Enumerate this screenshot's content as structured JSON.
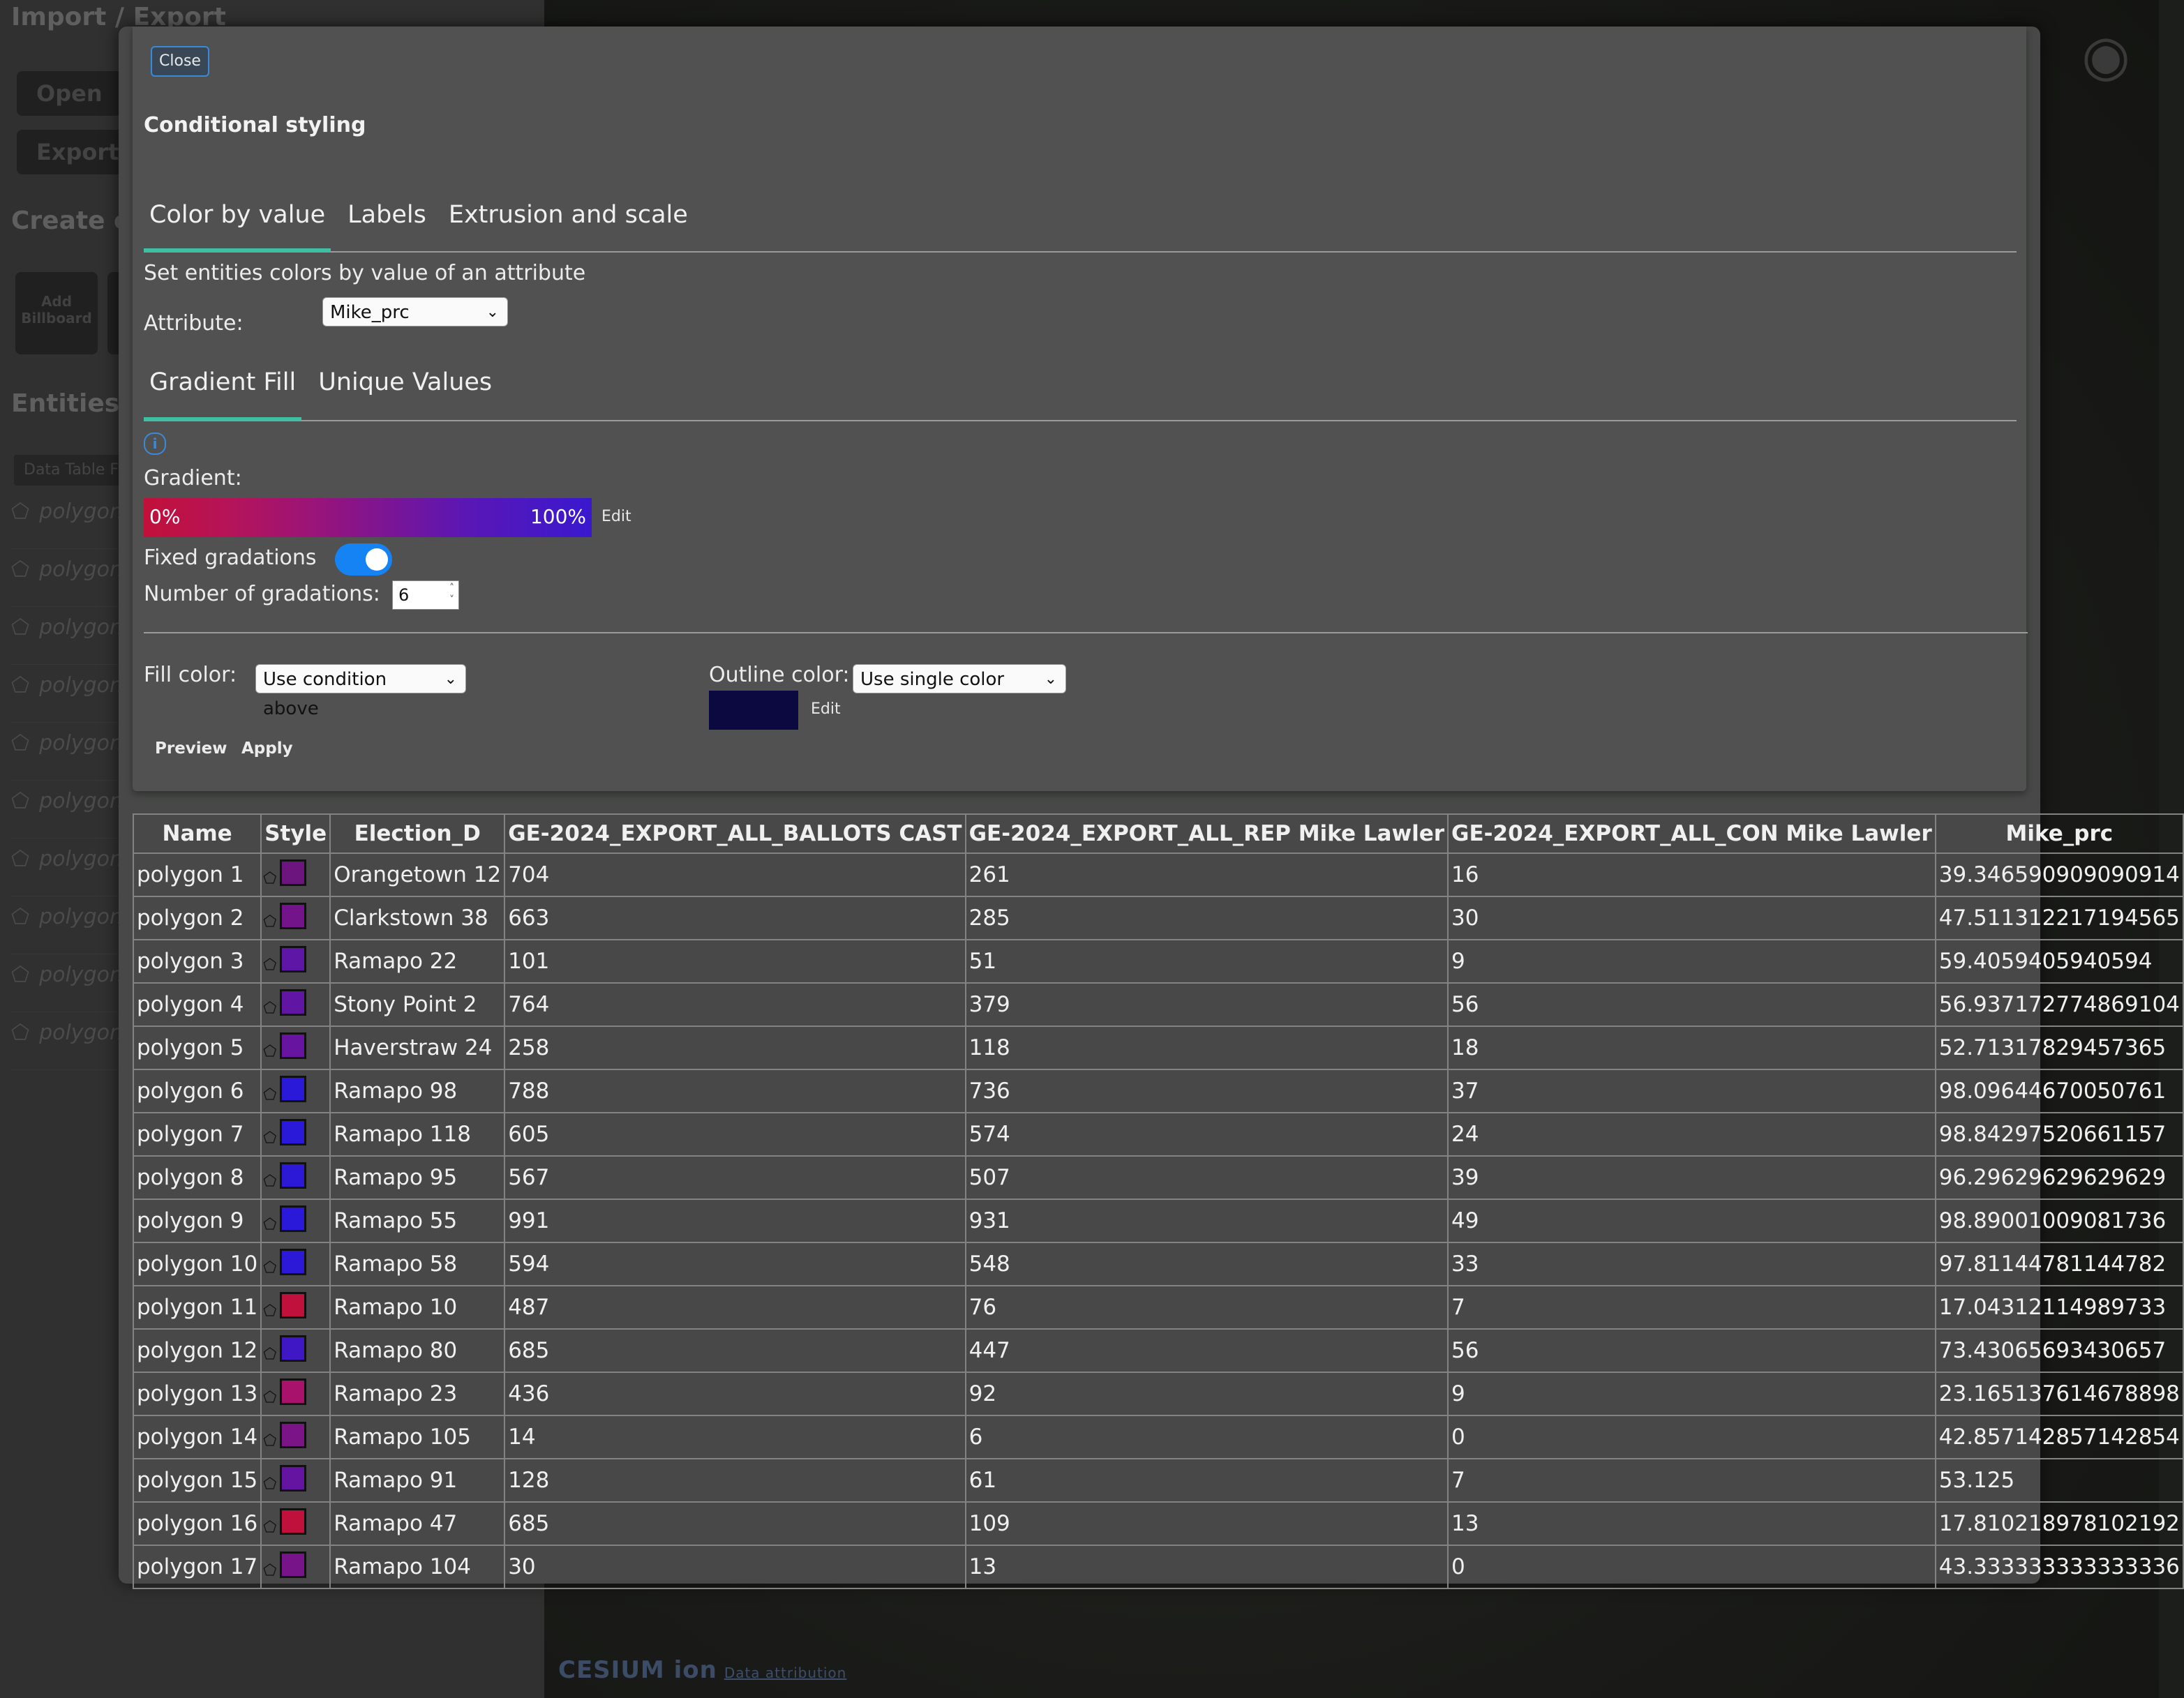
{
  "sidebar": {
    "heading_import": "Import / Export",
    "open_label": "Open",
    "export_label": "Export",
    "heading_create": "Create e",
    "add_billboard_label": "Add Billboard",
    "heading_entities": "Entities",
    "data_table_label": "Data Table F",
    "entity_rows": [
      "polygon",
      "polygon",
      "polygon",
      "polygon",
      "polygon",
      "polygon",
      "polygon",
      "polygon",
      "polygon",
      "polygon"
    ]
  },
  "map": {
    "attribution_brand": "CESIUM ion",
    "attribution_link": "Data attribution",
    "search_icon": "search-icon",
    "globe_icon": "globe-icon"
  },
  "modal": {
    "close_label": "Close",
    "title": "Conditional styling",
    "tabs": [
      "Color by value",
      "Labels",
      "Extrusion and scale"
    ],
    "description": "Set entities colors by value of an attribute",
    "attribute_label": "Attribute:",
    "attribute_value": "Mike_prc",
    "sub_tabs": [
      "Gradient Fill",
      "Unique Values"
    ],
    "info_icon": "info-icon",
    "gradient_label": "Gradient:",
    "gradient_start_label": "0%",
    "gradient_end_label": "100%",
    "gradient_colors": [
      "#c2103a",
      "#9a1479",
      "#3a18cf"
    ],
    "gradient_edit": "Edit",
    "fixed_gradations_label": "Fixed gradations",
    "fixed_gradations_on": true,
    "num_gradations_label": "Number of gradations:",
    "num_gradations_value": "6",
    "fill_color_label": "Fill color:",
    "fill_color_value": "Use condition above",
    "outline_color_label": "Outline color:",
    "outline_color_value": "Use single color",
    "outline_color_hex": "#0c0840",
    "outline_edit": "Edit",
    "preview_label": "Preview",
    "apply_label": "Apply"
  },
  "table": {
    "columns": [
      "Name",
      "Style",
      "Election_D",
      "GE-2024_EXPORT_ALL_BALLOTS CAST",
      "GE-2024_EXPORT_ALL_REP Mike Lawler",
      "GE-2024_EXPORT_ALL_CON Mike Lawler",
      "Mike_prc"
    ],
    "rows": [
      {
        "name": "polygon 1",
        "color": "#6c157f",
        "election": "Orangetown 12",
        "ballots": "704",
        "rep": "261",
        "con": "16",
        "prc": "39.346590909090914"
      },
      {
        "name": "polygon 2",
        "color": "#74148a",
        "election": "Clarkstown 38",
        "ballots": "663",
        "rep": "285",
        "con": "30",
        "prc": "47.511312217194565"
      },
      {
        "name": "polygon 3",
        "color": "#5e16a6",
        "election": "Ramapo 22",
        "ballots": "101",
        "rep": "51",
        "con": "9",
        "prc": "59.4059405940594"
      },
      {
        "name": "polygon 4",
        "color": "#6115a3",
        "election": "Stony Point 2",
        "ballots": "764",
        "rep": "379",
        "con": "56",
        "prc": "56.937172774869104"
      },
      {
        "name": "polygon 5",
        "color": "#6715a0",
        "election": "Haverstraw 24",
        "ballots": "258",
        "rep": "118",
        "con": "18",
        "prc": "52.71317829457365"
      },
      {
        "name": "polygon 6",
        "color": "#2a19d8",
        "election": "Ramapo 98",
        "ballots": "788",
        "rep": "736",
        "con": "37",
        "prc": "98.09644670050761"
      },
      {
        "name": "polygon 7",
        "color": "#2a19d8",
        "election": "Ramapo 118",
        "ballots": "605",
        "rep": "574",
        "con": "24",
        "prc": "98.84297520661157"
      },
      {
        "name": "polygon 8",
        "color": "#2c19d6",
        "election": "Ramapo 95",
        "ballots": "567",
        "rep": "507",
        "con": "39",
        "prc": "96.29629629629629"
      },
      {
        "name": "polygon 9",
        "color": "#2a19d8",
        "election": "Ramapo 55",
        "ballots": "991",
        "rep": "931",
        "con": "49",
        "prc": "98.89001009081736"
      },
      {
        "name": "polygon 10",
        "color": "#2b19d7",
        "election": "Ramapo 58",
        "ballots": "594",
        "rep": "548",
        "con": "33",
        "prc": "97.81144781144782"
      },
      {
        "name": "polygon 11",
        "color": "#c0103c",
        "election": "Ramapo 10",
        "ballots": "487",
        "rep": "76",
        "con": "7",
        "prc": "17.04312114989733"
      },
      {
        "name": "polygon 12",
        "color": "#4017c4",
        "election": "Ramapo 80",
        "ballots": "685",
        "rep": "447",
        "con": "56",
        "prc": "73.43065693430657"
      },
      {
        "name": "polygon 13",
        "color": "#a8126a",
        "election": "Ramapo 23",
        "ballots": "436",
        "rep": "92",
        "con": "9",
        "prc": "23.165137614678898"
      },
      {
        "name": "polygon 14",
        "color": "#7a1487",
        "election": "Ramapo 105",
        "ballots": "14",
        "rep": "6",
        "con": "0",
        "prc": "42.857142857142854"
      },
      {
        "name": "polygon 15",
        "color": "#6315a2",
        "election": "Ramapo 91",
        "ballots": "128",
        "rep": "61",
        "con": "7",
        "prc": "53.125"
      },
      {
        "name": "polygon 16",
        "color": "#c0103c",
        "election": "Ramapo 47",
        "ballots": "685",
        "rep": "109",
        "con": "13",
        "prc": "17.810218978102192"
      },
      {
        "name": "polygon 17",
        "color": "#78148a",
        "election": "Ramapo 104",
        "ballots": "30",
        "rep": "13",
        "con": "0",
        "prc": "43.333333333333336"
      }
    ]
  }
}
